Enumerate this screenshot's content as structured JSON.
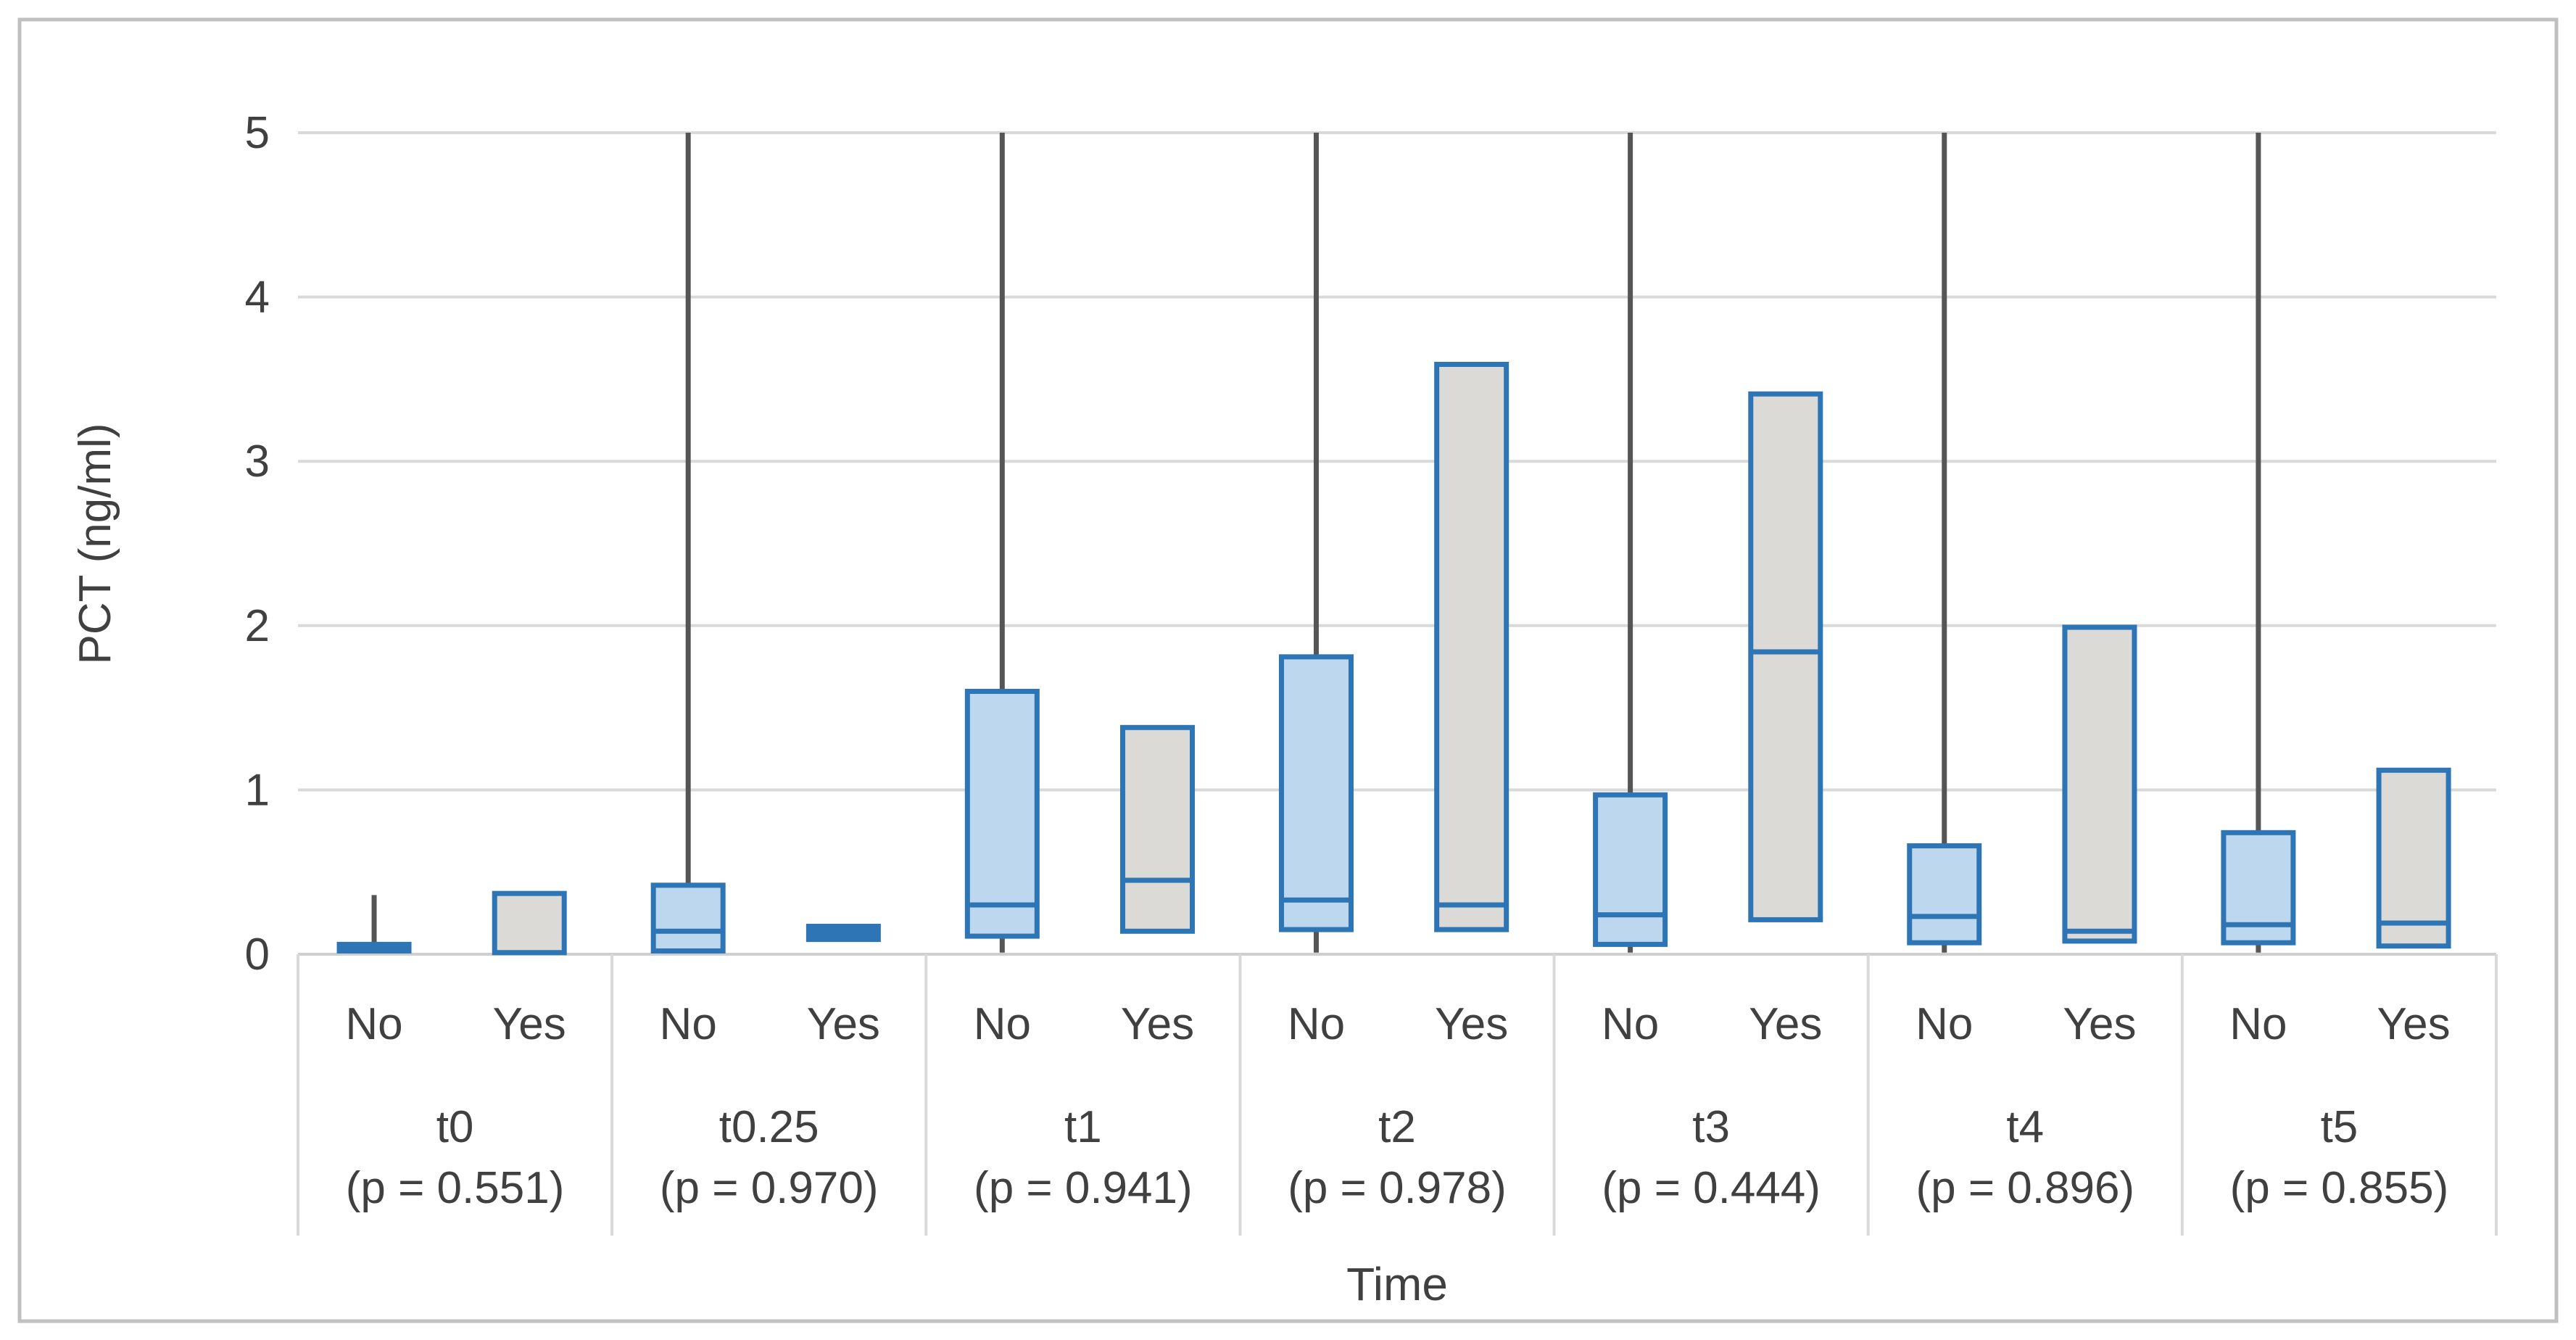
{
  "chart_data": {
    "type": "boxplot",
    "title": "",
    "xlabel": "Time",
    "ylabel": "PCT (ng/ml)",
    "y_axis": {
      "min": 0,
      "max": 5,
      "tick_interval": 1,
      "tick_labels": [
        "0",
        "1",
        "2",
        "3",
        "4",
        "5"
      ]
    },
    "grid": true,
    "legend": false,
    "category_inner_labels": [
      "No",
      "Yes"
    ],
    "colors": {
      "box_border": "#2E75B6",
      "box_fill_no": "#BDD7EE",
      "box_fill_yes": "#DBDAD6",
      "box_solid": "#2E75B6",
      "whisker": "#555555",
      "gridline": "#D9D9D9",
      "axis_line": "#D0CECE",
      "axis_text": "#404040",
      "outer_border": "#C0C0C0"
    },
    "groups": [
      {
        "label": "t0",
        "p_value_label": "(p = 0.551)",
        "p_value": 0.551,
        "boxes": [
          {
            "category": "No",
            "style": "solid",
            "q1": 0.02,
            "median": null,
            "q3": 0.06,
            "whisker_low": null,
            "whisker_high": 0.36
          },
          {
            "category": "Yes",
            "style": "gray",
            "q1": 0.01,
            "median": null,
            "q3": 0.37,
            "whisker_low": null,
            "whisker_high": null
          }
        ]
      },
      {
        "label": "t0.25",
        "p_value_label": "(p = 0.970)",
        "p_value": 0.97,
        "boxes": [
          {
            "category": "No",
            "style": "blue",
            "q1": 0.02,
            "median": 0.14,
            "q3": 0.42,
            "whisker_low": null,
            "whisker_high": 5
          },
          {
            "category": "Yes",
            "style": "solid",
            "q1": 0.09,
            "median": null,
            "q3": 0.17,
            "whisker_low": null,
            "whisker_high": null
          }
        ]
      },
      {
        "label": "t1",
        "p_value_label": "(p = 0.941)",
        "p_value": 0.941,
        "boxes": [
          {
            "category": "No",
            "style": "blue",
            "q1": 0.11,
            "median": 0.3,
            "q3": 1.6,
            "whisker_low": 0.01,
            "whisker_high": 5
          },
          {
            "category": "Yes",
            "style": "gray",
            "q1": 0.14,
            "median": 0.45,
            "q3": 1.38,
            "whisker_low": null,
            "whisker_high": null
          }
        ]
      },
      {
        "label": "t2",
        "p_value_label": "(p = 0.978)",
        "p_value": 0.978,
        "boxes": [
          {
            "category": "No",
            "style": "blue",
            "q1": 0.15,
            "median": 0.33,
            "q3": 1.81,
            "whisker_low": 0.01,
            "whisker_high": 5
          },
          {
            "category": "Yes",
            "style": "gray",
            "q1": 0.15,
            "median": 0.3,
            "q3": 3.59,
            "whisker_low": null,
            "whisker_high": null
          }
        ]
      },
      {
        "label": "t3",
        "p_value_label": "(p = 0.444)",
        "p_value": 0.444,
        "boxes": [
          {
            "category": "No",
            "style": "blue",
            "q1": 0.06,
            "median": 0.24,
            "q3": 0.97,
            "whisker_low": 0.01,
            "whisker_high": 5
          },
          {
            "category": "Yes",
            "style": "gray",
            "q1": 0.21,
            "median": 1.84,
            "q3": 3.41,
            "whisker_low": null,
            "whisker_high": null
          }
        ]
      },
      {
        "label": "t4",
        "p_value_label": "(p = 0.896)",
        "p_value": 0.896,
        "boxes": [
          {
            "category": "No",
            "style": "blue",
            "q1": 0.07,
            "median": 0.23,
            "q3": 0.66,
            "whisker_low": 0.01,
            "whisker_high": 5
          },
          {
            "category": "Yes",
            "style": "gray",
            "q1": 0.08,
            "median": 0.14,
            "q3": 1.99,
            "whisker_low": null,
            "whisker_high": null
          }
        ]
      },
      {
        "label": "t5",
        "p_value_label": "(p = 0.855)",
        "p_value": 0.855,
        "boxes": [
          {
            "category": "No",
            "style": "blue",
            "q1": 0.07,
            "median": 0.18,
            "q3": 0.74,
            "whisker_low": 0.01,
            "whisker_high": 5
          },
          {
            "category": "Yes",
            "style": "gray",
            "q1": 0.05,
            "median": 0.19,
            "q3": 1.12,
            "whisker_low": null,
            "whisker_high": null
          }
        ]
      }
    ]
  }
}
